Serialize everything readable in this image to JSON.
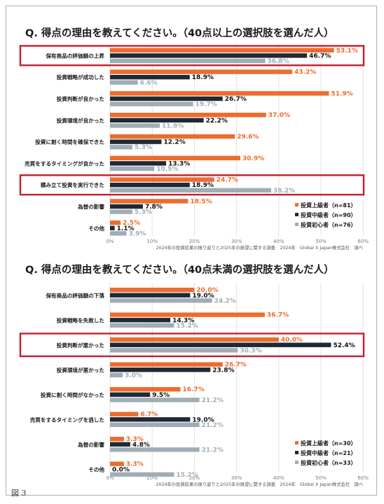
{
  "figure_label": "図 3",
  "colors": {
    "advanced": "#ed6c2d",
    "intermediate": "#1e2a36",
    "beginner": "#a0adb5",
    "highlight": "#c0202a",
    "grid": "#e2e2e2",
    "axis_text": "#7a7a7a"
  },
  "source_note": "2024年の投資結果の振り返りと2025年の展望に関する調査　2024年　Global X Japan株式会社　調べ",
  "chart_data": [
    {
      "type": "bar",
      "orientation": "horizontal",
      "title": "Q. 得点の理由を教えてください。（40点以上の選択肢を選んだ人）",
      "categories": [
        "保有商品の評価額の上昇",
        "投資戦略が成功した",
        "投資判断が良かった",
        "投資環境が良かった",
        "投資に割く時間を確保できた",
        "売買をするタイミングが良かった",
        "積み立て投資を実行できた",
        "為替の影響",
        "その他"
      ],
      "highlighted_categories": [
        "保有商品の評価額の上昇",
        "積み立て投資を実行できた"
      ],
      "series": [
        {
          "name": "投資上級者（n=81）",
          "values": [
            53.1,
            43.2,
            51.9,
            37.0,
            29.6,
            30.9,
            24.7,
            18.5,
            2.5
          ]
        },
        {
          "name": "投資中級者（n=90）",
          "values": [
            46.7,
            18.9,
            26.7,
            22.2,
            12.2,
            13.3,
            18.9,
            7.8,
            1.1
          ]
        },
        {
          "name": "投資初心者（n=76）",
          "values": [
            36.8,
            6.6,
            19.7,
            11.8,
            5.3,
            10.5,
            38.2,
            5.3,
            3.9
          ]
        }
      ],
      "xlim": [
        0,
        60
      ],
      "xticks": [
        "0%",
        "10%",
        "20%",
        "30%",
        "40%",
        "50%",
        "60%"
      ],
      "grid": true,
      "legend_position": "bottom-right"
    },
    {
      "type": "bar",
      "orientation": "horizontal",
      "title": "Q. 得点の理由を教えてください。（40点未満の選択肢を選んだ人）",
      "categories": [
        "保有商品の評価額の下落",
        "投資戦略を失敗した",
        "投資判断が悪かった",
        "投資環境が悪かった",
        "投資に割く時間がなかった",
        "売買をするタイミングを逃した",
        "為替の影響",
        "その他"
      ],
      "highlighted_categories": [
        "投資判断が悪かった"
      ],
      "series": [
        {
          "name": "投資上級者（n=30）",
          "values": [
            20.0,
            36.7,
            40.0,
            26.7,
            16.7,
            6.7,
            3.3,
            3.3
          ]
        },
        {
          "name": "投資中級者（n=21）",
          "values": [
            19.0,
            14.3,
            52.4,
            23.8,
            9.5,
            19.0,
            4.8,
            0.0
          ]
        },
        {
          "name": "投資初心者（n=33）",
          "values": [
            24.2,
            15.2,
            30.3,
            3.0,
            21.2,
            21.2,
            21.2,
            15.2
          ]
        }
      ],
      "xlim": [
        0,
        60
      ],
      "xticks": [
        "0%",
        "10%",
        "20%",
        "30%",
        "40%",
        "50%",
        "60%"
      ],
      "grid": true,
      "legend_position": "bottom-right"
    }
  ]
}
